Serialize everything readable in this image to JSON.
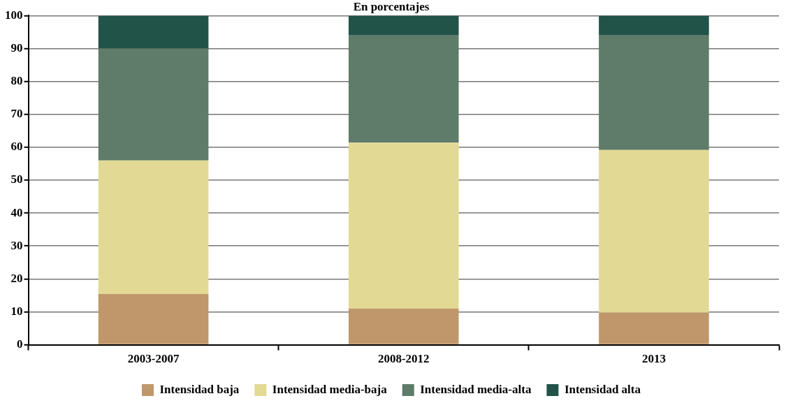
{
  "chart_data": {
    "type": "bar",
    "title": "En porcentajes",
    "stacked": true,
    "categories": [
      "2003-2007",
      "2008-2012",
      "2013"
    ],
    "series": [
      {
        "name": "Intensidad baja",
        "color": "#c0976a",
        "values": [
          15.4,
          11,
          9.8
        ]
      },
      {
        "name": "Intensidad media-baja",
        "color": "#e2da94",
        "values": [
          40.6,
          50.4,
          49.4
        ]
      },
      {
        "name": "Intensidad media-alta",
        "color": "#5f7b69",
        "values": [
          34,
          32.6,
          34.8
        ]
      },
      {
        "name": "Intensidad alta",
        "color": "#215349",
        "values": [
          10,
          6,
          6
        ]
      }
    ],
    "ylim": [
      0,
      100
    ],
    "yticks": [
      0,
      10,
      20,
      30,
      40,
      50,
      60,
      70,
      80,
      90,
      100
    ],
    "grid": "y",
    "legend": "bottom"
  }
}
